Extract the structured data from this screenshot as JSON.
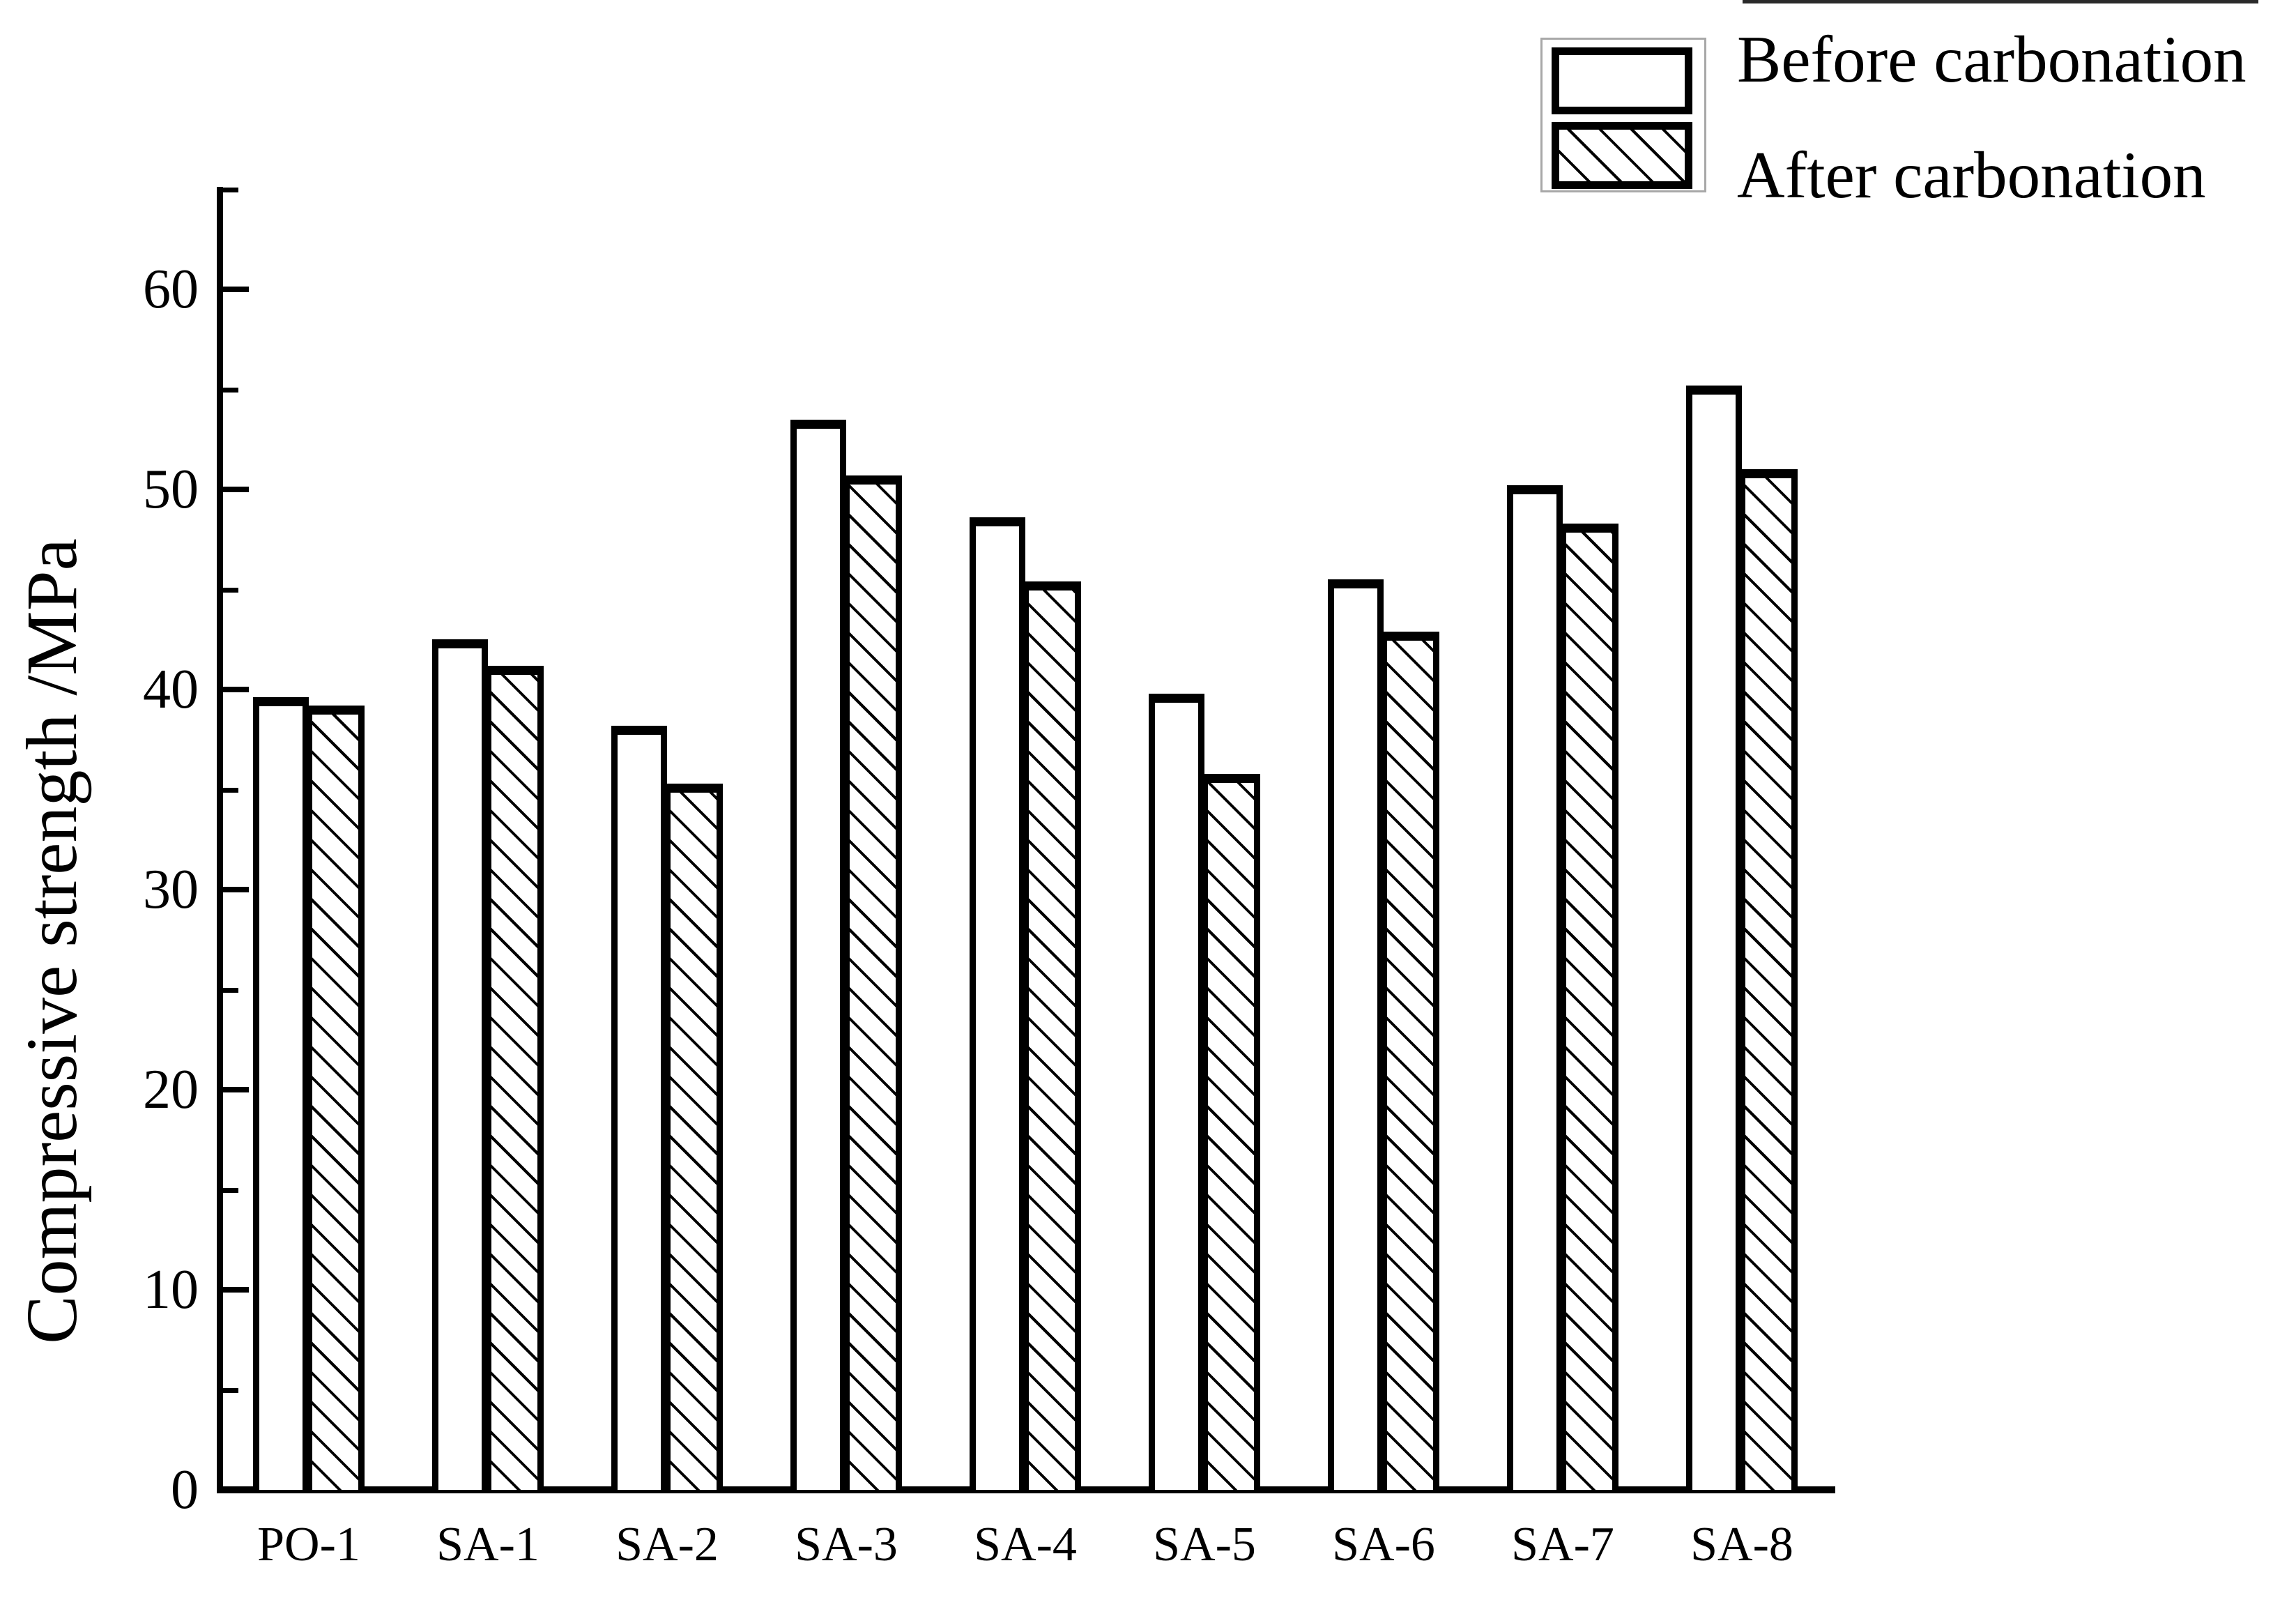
{
  "figure": {
    "background_color": "#ffffff",
    "ink_color": "#000000",
    "legend_outline_color": "#a8a8a8"
  },
  "y_axis": {
    "title": "Compressive strength /MPa",
    "min": 0,
    "max": 65,
    "major_ticks": [
      0,
      10,
      20,
      30,
      40,
      50,
      60
    ],
    "minor_ticks": [
      5,
      15,
      25,
      35,
      45,
      55,
      65
    ]
  },
  "x_axis": {
    "categories": [
      "PO-1",
      "SA-1",
      "SA-2",
      "SA-3",
      "SA-4",
      "SA-5",
      "SA-6",
      "SA-7",
      "SA-8"
    ]
  },
  "legend": {
    "items": [
      {
        "label": "Before carbonation",
        "swatch": "plain-white-box"
      },
      {
        "label": "After carbonation",
        "swatch": "diagonal-hatched-box"
      }
    ]
  },
  "chart_data": {
    "type": "bar",
    "title": "",
    "categories": [
      "PO-1",
      "SA-1",
      "SA-2",
      "SA-3",
      "SA-4",
      "SA-5",
      "SA-6",
      "SA-7",
      "SA-8"
    ],
    "series": [
      {
        "name": "Before carbonation",
        "style": "plain",
        "values": [
          39.6,
          42.5,
          38.2,
          53.5,
          48.6,
          39.8,
          45.5,
          50.2,
          55.2
        ]
      },
      {
        "name": "After carbonation",
        "style": "hatched",
        "values": [
          39.2,
          41.2,
          35.3,
          50.7,
          45.4,
          35.8,
          42.9,
          48.3,
          51.0
        ]
      }
    ],
    "xlabel": "",
    "ylabel": "Compressive strength /MPa",
    "ylim": [
      0,
      65
    ],
    "ytick_step_major": 10,
    "ytick_step_minor": 5,
    "grid": false,
    "bar_fill": "white",
    "hatch_pattern": "backslash-diagonal",
    "legend_position": "top-right"
  }
}
